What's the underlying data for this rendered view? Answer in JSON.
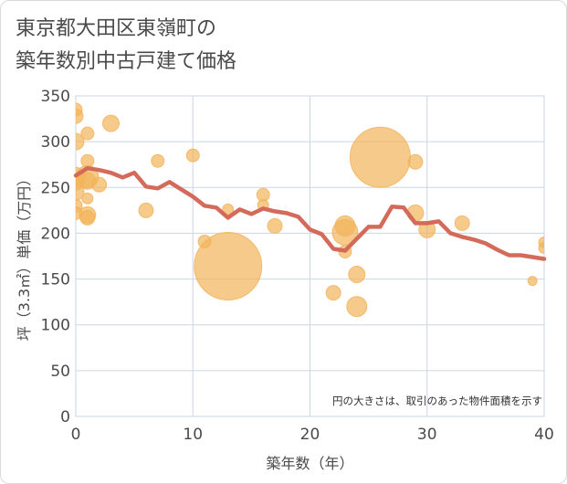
{
  "title": {
    "line1": "東京都大田区東嶺町の",
    "line2": "築年数別中古戸建て価格"
  },
  "colors": {
    "bubble": "#f2b45a",
    "line": "#d36a5a",
    "grid": "#c9d6e3",
    "plot_border": "#c9d6e3"
  },
  "chart_data": {
    "type": "scatter",
    "xlabel": "築年数（年）",
    "ylabel": "坪（3.3㎡）単価（万円）",
    "xlim": [
      0,
      40
    ],
    "ylim": [
      0,
      350
    ],
    "x_ticks": [
      "0",
      "10",
      "20",
      "30",
      "40"
    ],
    "y_ticks": [
      "0",
      "50",
      "100",
      "150",
      "200",
      "250",
      "300",
      "350"
    ],
    "grid": true,
    "annotation": "円の大きさは、取引のあった物件面積を示す",
    "series": [
      {
        "type": "bubble",
        "points": [
          {
            "x": 0,
            "y": 335,
            "size": 7
          },
          {
            "x": 0,
            "y": 328,
            "size": 8
          },
          {
            "x": 0,
            "y": 300,
            "size": 9
          },
          {
            "x": 0,
            "y": 262,
            "size": 10
          },
          {
            "x": 0,
            "y": 255,
            "size": 8
          },
          {
            "x": 0,
            "y": 245,
            "size": 9
          },
          {
            "x": 0,
            "y": 230,
            "size": 7
          },
          {
            "x": 0,
            "y": 222,
            "size": 7
          },
          {
            "x": 1,
            "y": 309,
            "size": 7
          },
          {
            "x": 1,
            "y": 279,
            "size": 7
          },
          {
            "x": 1,
            "y": 262,
            "size": 12
          },
          {
            "x": 1,
            "y": 257,
            "size": 9
          },
          {
            "x": 1,
            "y": 238,
            "size": 6
          },
          {
            "x": 1,
            "y": 220,
            "size": 9
          },
          {
            "x": 1,
            "y": 217,
            "size": 8
          },
          {
            "x": 2,
            "y": 253,
            "size": 8
          },
          {
            "x": 3,
            "y": 320,
            "size": 9
          },
          {
            "x": 6,
            "y": 225,
            "size": 8
          },
          {
            "x": 7,
            "y": 279,
            "size": 7
          },
          {
            "x": 10,
            "y": 285,
            "size": 7
          },
          {
            "x": 11,
            "y": 191,
            "size": 7
          },
          {
            "x": 13,
            "y": 164,
            "size": 37
          },
          {
            "x": 13,
            "y": 226,
            "size": 6
          },
          {
            "x": 16,
            "y": 242,
            "size": 7
          },
          {
            "x": 16,
            "y": 231,
            "size": 6
          },
          {
            "x": 17,
            "y": 208,
            "size": 8
          },
          {
            "x": 22,
            "y": 135,
            "size": 8
          },
          {
            "x": 23,
            "y": 208,
            "size": 11
          },
          {
            "x": 23,
            "y": 201,
            "size": 14
          },
          {
            "x": 23,
            "y": 180,
            "size": 7
          },
          {
            "x": 24,
            "y": 155,
            "size": 9
          },
          {
            "x": 24,
            "y": 120,
            "size": 11
          },
          {
            "x": 26,
            "y": 283,
            "size": 33
          },
          {
            "x": 29,
            "y": 278,
            "size": 8
          },
          {
            "x": 29,
            "y": 222,
            "size": 9
          },
          {
            "x": 30,
            "y": 204,
            "size": 9
          },
          {
            "x": 33,
            "y": 211,
            "size": 8
          },
          {
            "x": 39,
            "y": 148,
            "size": 5
          },
          {
            "x": 40,
            "y": 190,
            "size": 6
          },
          {
            "x": 40,
            "y": 184,
            "size": 6
          }
        ]
      },
      {
        "type": "line",
        "x": [
          0,
          1,
          2,
          3,
          4,
          5,
          6,
          7,
          8,
          9,
          10,
          11,
          12,
          13,
          14,
          15,
          16,
          17,
          18,
          19,
          20,
          21,
          22,
          23,
          24,
          25,
          26,
          27,
          28,
          29,
          30,
          31,
          32,
          33,
          34,
          35,
          36,
          37,
          38,
          39,
          40
        ],
        "y": [
          263,
          271,
          269,
          266,
          261,
          266,
          251,
          249,
          256,
          248,
          240,
          230,
          228,
          217,
          226,
          221,
          227,
          224,
          222,
          218,
          204,
          199,
          183,
          181,
          194,
          207,
          207,
          229,
          228,
          211,
          211,
          213,
          200,
          196,
          193,
          189,
          182,
          176,
          176,
          174,
          172
        ]
      }
    ]
  }
}
